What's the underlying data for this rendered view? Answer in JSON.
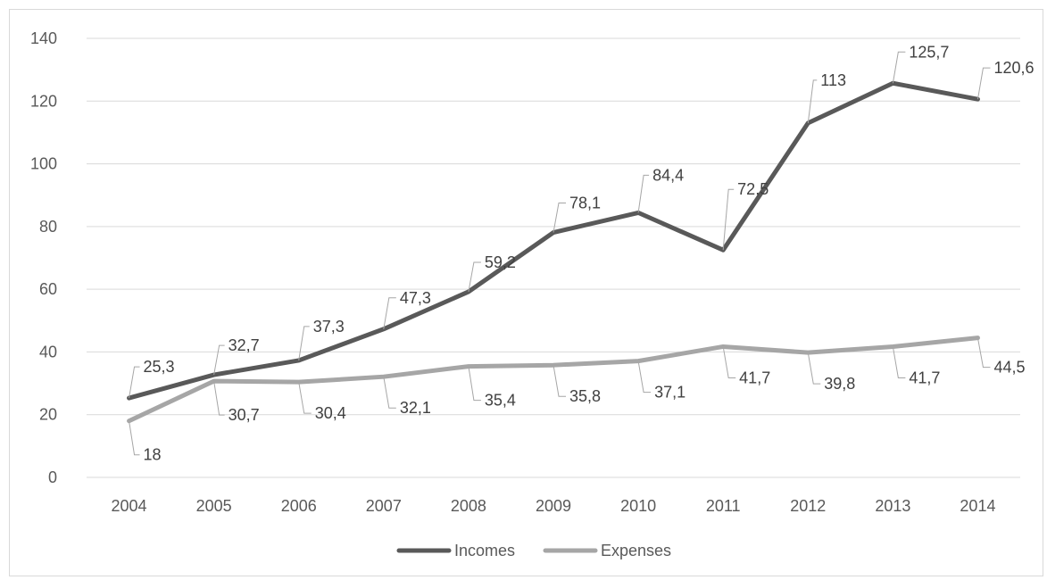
{
  "colors": {
    "incomes": "#595959",
    "expenses": "#a6a6a6",
    "grid": "#d9d9d9",
    "leader": "#a6a6a6",
    "text": "#595959"
  },
  "chart_data": {
    "type": "line",
    "title": "",
    "xlabel": "",
    "ylabel": "",
    "categories": [
      "2004",
      "2005",
      "2006",
      "2007",
      "2008",
      "2009",
      "2010",
      "2011",
      "2012",
      "2013",
      "2014"
    ],
    "ylim": [
      0,
      140
    ],
    "yticks": [
      "0",
      "20",
      "40",
      "60",
      "80",
      "100",
      "120",
      "140"
    ],
    "grid": true,
    "legend_position": "bottom",
    "series": [
      {
        "name": "Incomes",
        "values": [
          25.3,
          32.7,
          37.3,
          47.3,
          59.2,
          78.1,
          84.4,
          72.5,
          113,
          125.7,
          120.6
        ],
        "labels": [
          "25,3",
          "32,7",
          "37,3",
          "47,3",
          "59,2",
          "78,1",
          "84,4",
          "72,5",
          "113",
          "125,7",
          "120,6"
        ]
      },
      {
        "name": "Expenses",
        "values": [
          18,
          30.7,
          30.4,
          32.1,
          35.4,
          35.8,
          37.1,
          41.7,
          39.8,
          41.7,
          44.5
        ],
        "labels": [
          "18",
          "30,7",
          "30,4",
          "32,1",
          "35,4",
          "35,8",
          "37,1",
          "41,7",
          "39,8",
          "41,7",
          "44,5"
        ]
      }
    ]
  }
}
